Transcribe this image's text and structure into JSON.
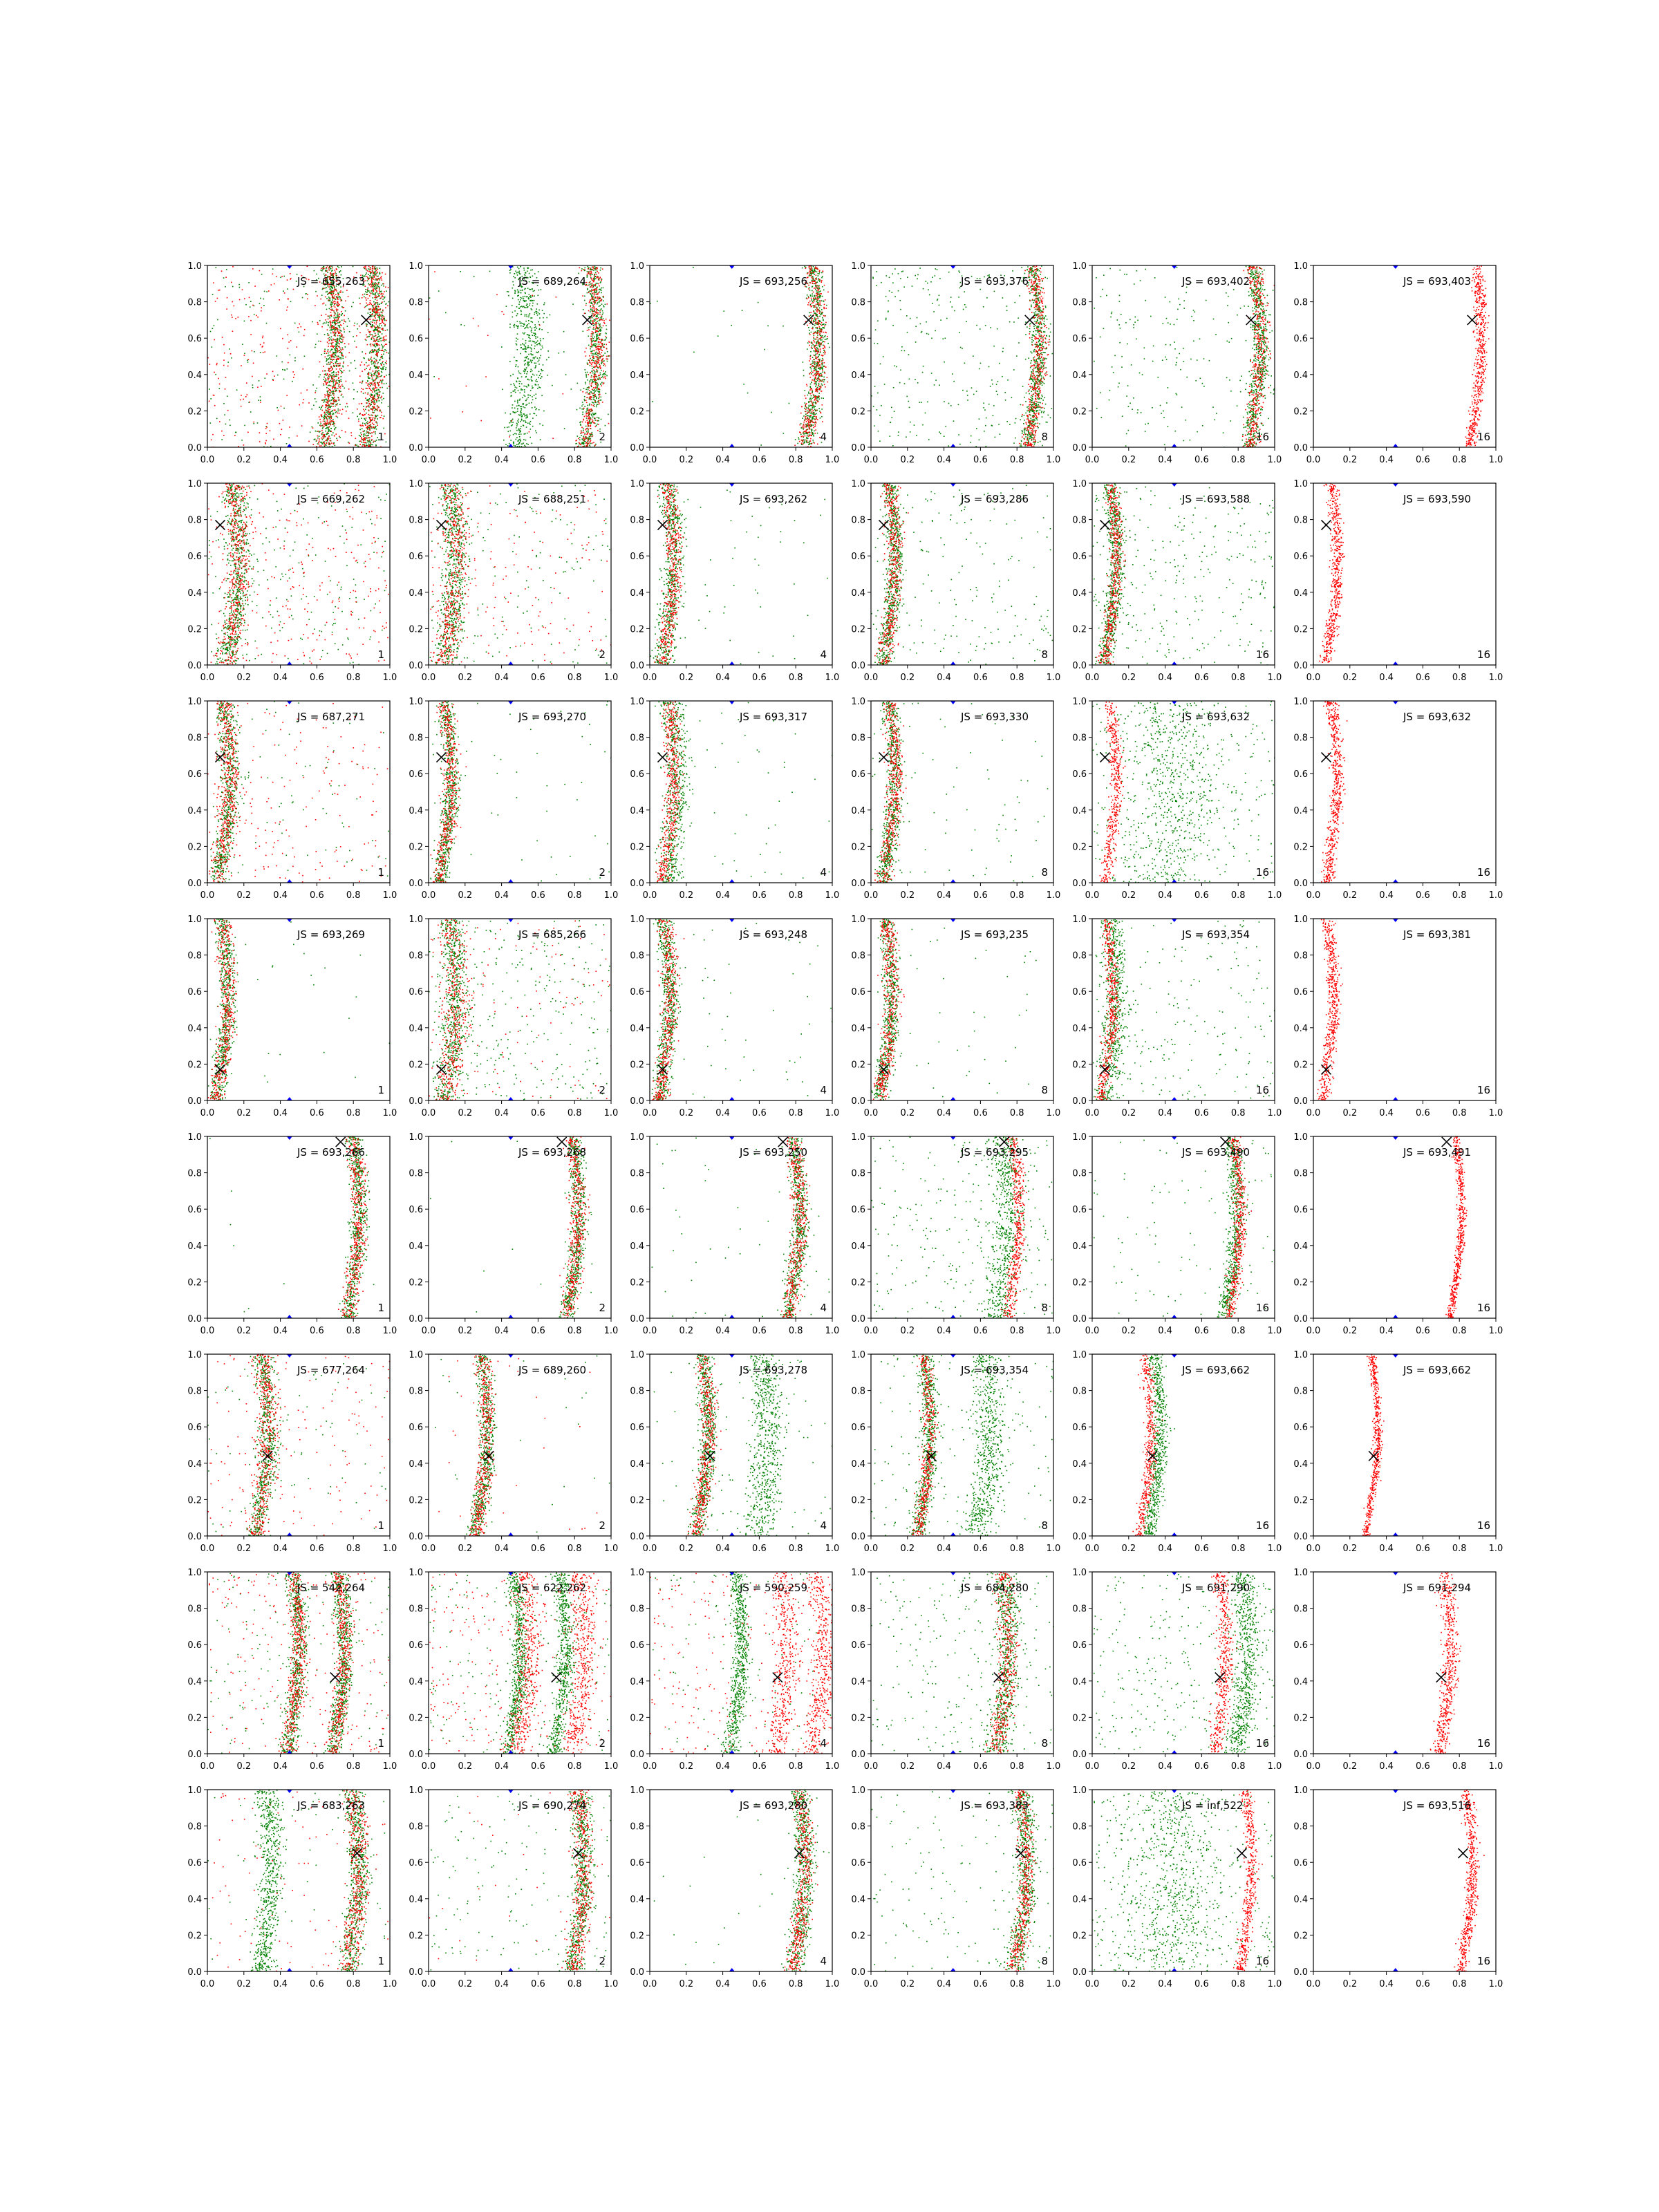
{
  "figure": {
    "rows": 8,
    "cols": 6,
    "colors": {
      "red": "#ff0000",
      "green": "#008000",
      "blue_marker": "#0000ff",
      "x_marker": "#000000",
      "axis": "#000000"
    }
  },
  "chart_data": {
    "type": "scatter",
    "xlim": [
      0,
      1
    ],
    "ylim": [
      0,
      1
    ],
    "xticks": [
      "0.0",
      "0.2",
      "0.4",
      "0.6",
      "0.8",
      "1.0"
    ],
    "yticks": [
      "0.0",
      "0.2",
      "0.4",
      "0.6",
      "0.8",
      "1.0"
    ],
    "grid": false,
    "rows": [
      {
        "x_marker": [
          0.87,
          0.7
        ],
        "panels": [
          {
            "js": "JS = 655,263",
            "n": "1",
            "red": [
              [
                0.88,
                0.05
              ],
              [
                0.65,
                0.05
              ]
            ],
            "green": [
              [
                0.88,
                0.05
              ],
              [
                0.65,
                0.05
              ]
            ],
            "noise_red": 0.55,
            "noise_green": 0.4
          },
          {
            "js": "JS = 689,264",
            "n": "2",
            "red": [
              [
                0.87,
                0.05
              ]
            ],
            "green": [
              [
                0.87,
                0.05
              ],
              [
                0.5,
                0.08
              ]
            ],
            "noise_red": 0.05,
            "noise_green": 0.05
          },
          {
            "js": "JS = 693,256",
            "n": "4",
            "red": [
              [
                0.87,
                0.05
              ]
            ],
            "green": [
              [
                0.87,
                0.04
              ]
            ],
            "noise_red": 0.0,
            "noise_green": 0.05
          },
          {
            "js": "JS = 693,376",
            "n": "8",
            "red": [
              [
                0.87,
                0.04
              ]
            ],
            "green": [
              [
                0.87,
                0.04
              ]
            ],
            "noise_red": 0.0,
            "noise_green": 0.6
          },
          {
            "js": "JS = 693,402",
            "n": "16",
            "red": [
              [
                0.87,
                0.04
              ]
            ],
            "green": [
              [
                0.87,
                0.04
              ]
            ],
            "noise_red": 0.0,
            "noise_green": 0.4
          },
          {
            "js": "JS = 693,403",
            "n": "16",
            "red": [
              [
                0.87,
                0.03
              ]
            ],
            "green": [],
            "noise_red": 0.0,
            "noise_green": 0.0
          }
        ]
      },
      {
        "x_marker": [
          0.07,
          0.77
        ],
        "panels": [
          {
            "js": "JS = 669,262",
            "n": "1",
            "red": [
              [
                0.12,
                0.06
              ]
            ],
            "green": [
              [
                0.12,
                0.06
              ]
            ],
            "noise_red": 0.5,
            "noise_green": 0.4
          },
          {
            "js": "JS = 688,251",
            "n": "2",
            "red": [
              [
                0.1,
                0.06
              ]
            ],
            "green": [
              [
                0.1,
                0.06
              ]
            ],
            "noise_red": 0.3,
            "noise_green": 0.3
          },
          {
            "js": "JS = 693,262",
            "n": "4",
            "red": [
              [
                0.08,
                0.04
              ]
            ],
            "green": [
              [
                0.08,
                0.05
              ]
            ],
            "noise_red": 0.0,
            "noise_green": 0.1
          },
          {
            "js": "JS = 693,286",
            "n": "8",
            "red": [
              [
                0.08,
                0.04
              ]
            ],
            "green": [
              [
                0.08,
                0.04
              ]
            ],
            "noise_red": 0.0,
            "noise_green": 0.4
          },
          {
            "js": "JS = 693,588",
            "n": "16",
            "red": [
              [
                0.08,
                0.03
              ]
            ],
            "green": [
              [
                0.08,
                0.04
              ]
            ],
            "noise_red": 0.0,
            "noise_green": 0.6
          },
          {
            "js": "JS = 693,590",
            "n": "16",
            "red": [
              [
                0.08,
                0.03
              ]
            ],
            "green": [],
            "noise_red": 0.0,
            "noise_green": 0.0
          }
        ]
      },
      {
        "x_marker": [
          0.07,
          0.69
        ],
        "panels": [
          {
            "js": "JS = 687,271",
            "n": "1",
            "red": [
              [
                0.07,
                0.05
              ]
            ],
            "green": [
              [
                0.07,
                0.05
              ]
            ],
            "noise_red": 0.35,
            "noise_green": 0.15
          },
          {
            "js": "JS = 693,270",
            "n": "2",
            "red": [
              [
                0.07,
                0.04
              ]
            ],
            "green": [
              [
                0.07,
                0.04
              ]
            ],
            "noise_red": 0.0,
            "noise_green": 0.1
          },
          {
            "js": "JS = 693,317",
            "n": "4",
            "red": [
              [
                0.08,
                0.04
              ]
            ],
            "green": [
              [
                0.1,
                0.06
              ]
            ],
            "noise_red": 0.0,
            "noise_green": 0.1
          },
          {
            "js": "JS = 693,330",
            "n": "8",
            "red": [
              [
                0.08,
                0.04
              ]
            ],
            "green": [
              [
                0.08,
                0.04
              ]
            ],
            "noise_red": 0.0,
            "noise_green": 0.15
          },
          {
            "js": "JS = 693,632",
            "n": "16",
            "red": [
              [
                0.08,
                0.03
              ]
            ],
            "green": [
              [
                0.4,
                0.25
              ]
            ],
            "noise_red": 0.0,
            "noise_green": 0.5
          },
          {
            "js": "JS = 693,632",
            "n": "16",
            "red": [
              [
                0.08,
                0.03
              ]
            ],
            "green": [],
            "noise_red": 0.0,
            "noise_green": 0.0
          }
        ]
      },
      {
        "x_marker": [
          0.07,
          0.17
        ],
        "panels": [
          {
            "js": "JS = 693,269",
            "n": "1",
            "red": [
              [
                0.06,
                0.04
              ]
            ],
            "green": [
              [
                0.06,
                0.04
              ]
            ],
            "noise_red": 0.0,
            "noise_green": 0.05
          },
          {
            "js": "JS = 685,266",
            "n": "2",
            "red": [
              [
                0.1,
                0.07
              ]
            ],
            "green": [
              [
                0.1,
                0.06
              ]
            ],
            "noise_red": 0.2,
            "noise_green": 0.6
          },
          {
            "js": "JS = 693,248",
            "n": "4",
            "red": [
              [
                0.06,
                0.04
              ]
            ],
            "green": [
              [
                0.06,
                0.04
              ]
            ],
            "noise_red": 0.0,
            "noise_green": 0.1
          },
          {
            "js": "JS = 693,235",
            "n": "8",
            "red": [
              [
                0.06,
                0.04
              ]
            ],
            "green": [
              [
                0.06,
                0.04
              ]
            ],
            "noise_red": 0.0,
            "noise_green": 0.1
          },
          {
            "js": "JS = 693,354",
            "n": "16",
            "red": [
              [
                0.06,
                0.03
              ]
            ],
            "green": [
              [
                0.08,
                0.06
              ]
            ],
            "noise_red": 0.0,
            "noise_green": 0.4
          },
          {
            "js": "JS = 693,381",
            "n": "16",
            "red": [
              [
                0.06,
                0.03
              ]
            ],
            "green": [],
            "noise_red": 0.0,
            "noise_green": 0.0
          }
        ]
      },
      {
        "x_marker": [
          0.73,
          0.97
        ],
        "panels": [
          {
            "js": "JS = 693,266",
            "n": "1",
            "red": [
              [
                0.78,
                0.04
              ]
            ],
            "green": [
              [
                0.78,
                0.04
              ]
            ],
            "noise_red": 0.0,
            "noise_green": 0.02
          },
          {
            "js": "JS = 693,268",
            "n": "2",
            "red": [
              [
                0.77,
                0.04
              ]
            ],
            "green": [
              [
                0.77,
                0.04
              ]
            ],
            "noise_red": 0.0,
            "noise_green": 0.02
          },
          {
            "js": "JS = 693,250",
            "n": "4",
            "red": [
              [
                0.77,
                0.04
              ]
            ],
            "green": [
              [
                0.77,
                0.04
              ]
            ],
            "noise_red": 0.0,
            "noise_green": 0.1
          },
          {
            "js": "JS = 693,295",
            "n": "8",
            "red": [
              [
                0.76,
                0.03
              ]
            ],
            "green": [
              [
                0.7,
                0.08
              ]
            ],
            "noise_red": 0.0,
            "noise_green": 0.5
          },
          {
            "js": "JS = 693,490",
            "n": "16",
            "red": [
              [
                0.76,
                0.03
              ]
            ],
            "green": [
              [
                0.74,
                0.04
              ]
            ],
            "noise_red": 0.0,
            "noise_green": 0.2
          },
          {
            "js": "JS = 693,491",
            "n": "16",
            "red": [
              [
                0.76,
                0.02
              ]
            ],
            "green": [],
            "noise_red": 0.0,
            "noise_green": 0.0
          }
        ]
      },
      {
        "x_marker": [
          0.33,
          0.44
        ],
        "panels": [
          {
            "js": "JS = 677,264",
            "n": "1",
            "red": [
              [
                0.28,
                0.05
              ]
            ],
            "green": [
              [
                0.28,
                0.05
              ]
            ],
            "noise_red": 0.3,
            "noise_green": 0.15
          },
          {
            "js": "JS = 689,260",
            "n": "2",
            "red": [
              [
                0.27,
                0.04
              ]
            ],
            "green": [
              [
                0.27,
                0.04
              ]
            ],
            "noise_red": 0.05,
            "noise_green": 0.05
          },
          {
            "js": "JS = 693,278",
            "n": "4",
            "red": [
              [
                0.27,
                0.04
              ]
            ],
            "green": [
              [
                0.27,
                0.04
              ],
              [
                0.6,
                0.08
              ]
            ],
            "noise_red": 0.0,
            "noise_green": 0.15
          },
          {
            "js": "JS = 693,354",
            "n": "8",
            "red": [
              [
                0.27,
                0.03
              ]
            ],
            "green": [
              [
                0.27,
                0.04
              ],
              [
                0.6,
                0.08
              ]
            ],
            "noise_red": 0.0,
            "noise_green": 0.3
          },
          {
            "js": "JS = 693,662",
            "n": "16",
            "red": [
              [
                0.27,
                0.03
              ]
            ],
            "green": [
              [
                0.32,
                0.04
              ]
            ],
            "noise_red": 0.0,
            "noise_green": 0.0
          },
          {
            "js": "JS = 693,662",
            "n": "16",
            "red": [
              [
                0.3,
                0.02
              ]
            ],
            "green": [],
            "noise_red": 0.0,
            "noise_green": 0.0
          }
        ]
      },
      {
        "x_marker": [
          0.7,
          0.42
        ],
        "panels": [
          {
            "js": "JS = 542,264",
            "n": "1",
            "red": [
              [
                0.45,
                0.04
              ],
              [
                0.7,
                0.04
              ]
            ],
            "green": [
              [
                0.45,
                0.04
              ],
              [
                0.7,
                0.04
              ]
            ],
            "noise_red": 0.4,
            "noise_green": 0.3
          },
          {
            "js": "JS = 622,262",
            "n": "2",
            "red": [
              [
                0.5,
                0.06
              ],
              [
                0.8,
                0.06
              ]
            ],
            "green": [
              [
                0.45,
                0.04
              ],
              [
                0.7,
                0.04
              ]
            ],
            "noise_red": 0.5,
            "noise_green": 0.4
          },
          {
            "js": "JS = 590,259",
            "n": "4",
            "red": [
              [
                0.7,
                0.06
              ],
              [
                0.9,
                0.06
              ]
            ],
            "green": [
              [
                0.45,
                0.04
              ]
            ],
            "noise_red": 0.4,
            "noise_green": 0.2
          },
          {
            "js": "JS = 684,280",
            "n": "8",
            "red": [
              [
                0.7,
                0.05
              ]
            ],
            "green": [
              [
                0.7,
                0.06
              ]
            ],
            "noise_red": 0.0,
            "noise_green": 0.5
          },
          {
            "js": "JS = 691,290",
            "n": "16",
            "red": [
              [
                0.68,
                0.04
              ]
            ],
            "green": [
              [
                0.8,
                0.06
              ]
            ],
            "noise_red": 0.0,
            "noise_green": 0.6
          },
          {
            "js": "JS = 691,294",
            "n": "16",
            "red": [
              [
                0.7,
                0.04
              ]
            ],
            "green": [],
            "noise_red": 0.0,
            "noise_green": 0.0
          }
        ]
      },
      {
        "x_marker": [
          0.82,
          0.65
        ],
        "panels": [
          {
            "js": "JS = 683,263",
            "n": "1",
            "red": [
              [
                0.78,
                0.05
              ]
            ],
            "green": [
              [
                0.78,
                0.05
              ],
              [
                0.3,
                0.06
              ]
            ],
            "noise_red": 0.2,
            "noise_green": 0.1
          },
          {
            "js": "JS = 690,274",
            "n": "2",
            "red": [
              [
                0.8,
                0.05
              ]
            ],
            "green": [
              [
                0.8,
                0.05
              ]
            ],
            "noise_red": 0.05,
            "noise_green": 0.3
          },
          {
            "js": "JS = 693,280",
            "n": "4",
            "red": [
              [
                0.8,
                0.04
              ]
            ],
            "green": [
              [
                0.8,
                0.05
              ]
            ],
            "noise_red": 0.0,
            "noise_green": 0.05
          },
          {
            "js": "JS = 693,383",
            "n": "8",
            "red": [
              [
                0.8,
                0.04
              ]
            ],
            "green": [
              [
                0.8,
                0.05
              ]
            ],
            "noise_red": 0.0,
            "noise_green": 0.3
          },
          {
            "js": "JS = inf,522",
            "n": "16",
            "red": [
              [
                0.82,
                0.03
              ]
            ],
            "green": [
              [
                0.4,
                0.25
              ]
            ],
            "noise_red": 0.0,
            "noise_green": 0.6
          },
          {
            "js": "JS = 693,516",
            "n": "16",
            "red": [
              [
                0.82,
                0.03
              ]
            ],
            "green": [],
            "noise_red": 0.0,
            "noise_green": 0.0
          }
        ]
      }
    ]
  }
}
